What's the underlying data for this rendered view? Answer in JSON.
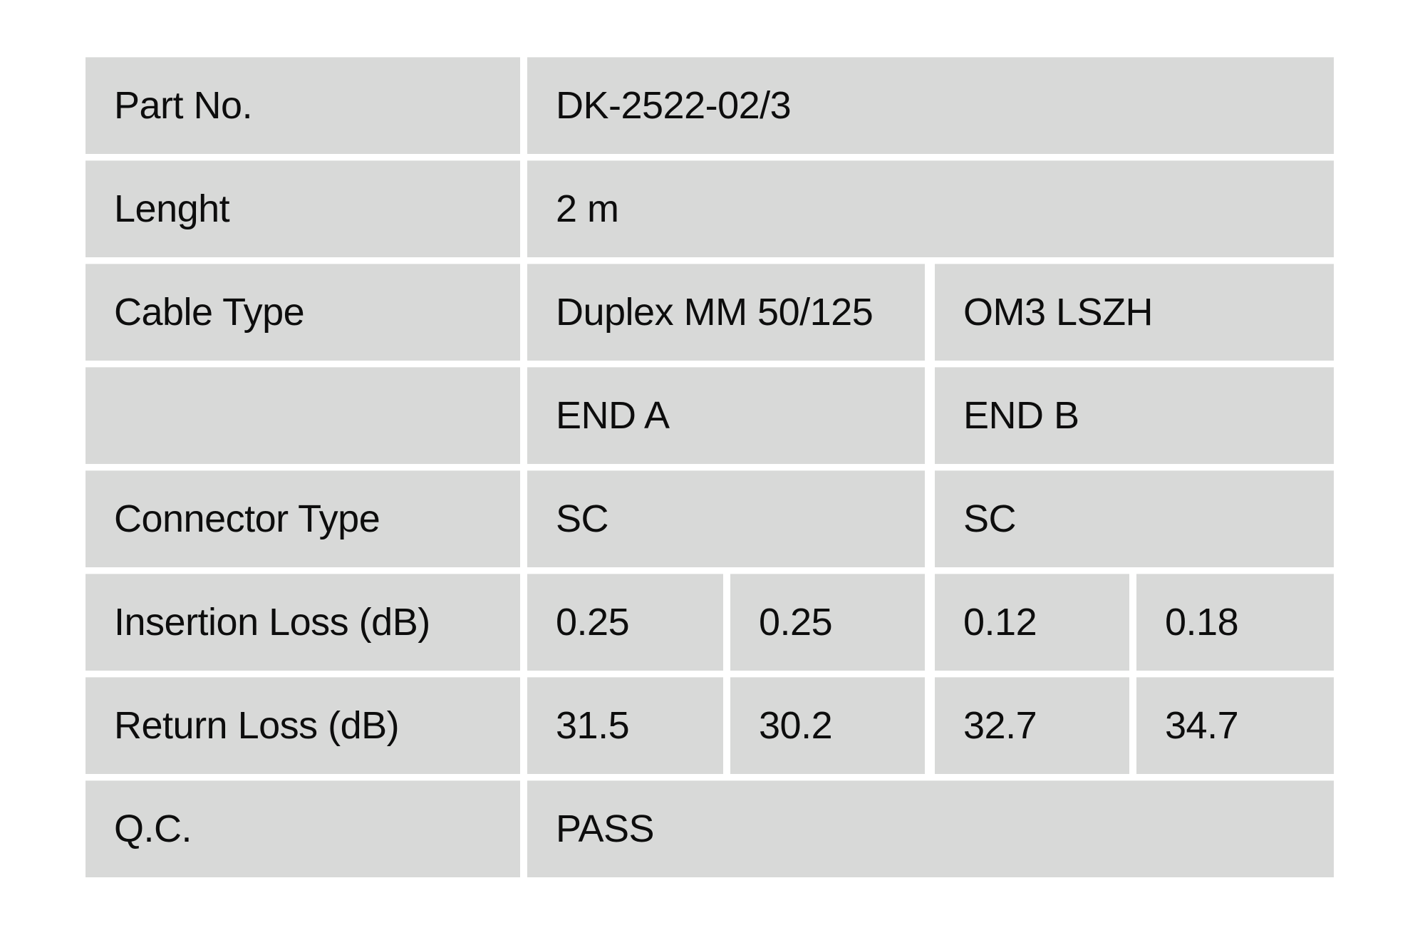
{
  "page": {
    "background_color": "#ffffff",
    "cell_background_color": "#d8d9d8",
    "text_color": "#0d0d0d"
  },
  "table": {
    "rows": {
      "part_no": {
        "label": "Part No.",
        "value": "DK-2522-02/3"
      },
      "length": {
        "label": "Lenght",
        "value": "2 m"
      },
      "cable_type": {
        "label": "Cable Type",
        "end_a": "Duplex MM 50/125",
        "end_b": "OM3 LSZH"
      },
      "ends_header": {
        "label": "",
        "end_a": "END A",
        "end_b": "END B"
      },
      "connector_type": {
        "label": "Connector Type",
        "end_a": "SC",
        "end_b": "SC"
      },
      "insertion_loss": {
        "label": "Insertion Loss (dB)",
        "end_a_1": "0.25",
        "end_a_2": "0.25",
        "end_b_1": "0.12",
        "end_b_2": "0.18"
      },
      "return_loss": {
        "label": "Return Loss (dB)",
        "end_a_1": "31.5",
        "end_a_2": "30.2",
        "end_b_1": "32.7",
        "end_b_2": "34.7"
      },
      "qc": {
        "label": "Q.C.",
        "value": "PASS"
      }
    }
  }
}
